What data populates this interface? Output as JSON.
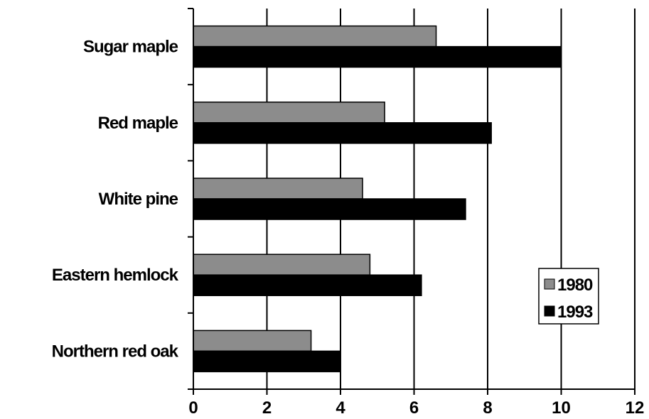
{
  "chart_data": {
    "type": "bar",
    "orientation": "horizontal",
    "categories": [
      "Sugar maple",
      "Red maple",
      "White pine",
      "Eastern hemlock",
      "Northern red oak"
    ],
    "series": [
      {
        "name": "1980",
        "values": [
          6.6,
          5.2,
          4.6,
          4.8,
          3.2
        ],
        "color": "#8c8c8c"
      },
      {
        "name": "1993",
        "values": [
          10.0,
          8.1,
          7.4,
          6.2,
          4.0
        ],
        "color": "#000000"
      }
    ],
    "x_ticks": [
      "0",
      "2",
      "4",
      "6",
      "8",
      "10",
      "12"
    ],
    "xlim": [
      0,
      12
    ],
    "grid": "vertical",
    "legend_position": "right"
  }
}
